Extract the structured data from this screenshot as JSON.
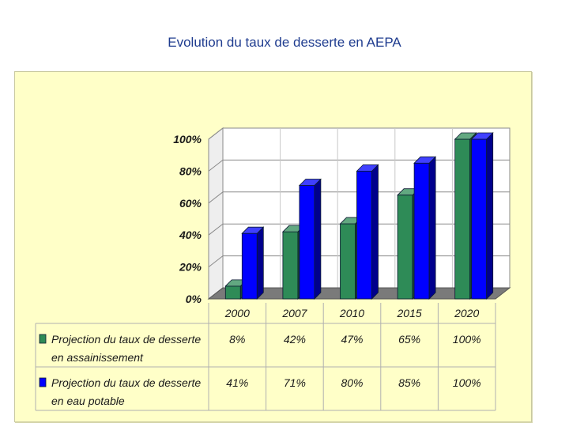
{
  "title": "Evolution du taux de desserte en AEPA",
  "chart_data": {
    "type": "bar",
    "style": "3d-clustered-with-data-table",
    "categories": [
      "2000",
      "2007",
      "2010",
      "2015",
      "2020"
    ],
    "ylim": [
      0,
      100
    ],
    "yticks": [
      "0%",
      "20%",
      "40%",
      "60%",
      "80%",
      "100%"
    ],
    "grid": true,
    "series": [
      {
        "name_lines": [
          "Projection du taux de desserte",
          "en assainissement"
        ],
        "values": [
          8,
          42,
          47,
          65,
          100
        ],
        "labels": [
          "8%",
          "42%",
          "47%",
          "65%",
          "100%"
        ],
        "color": "#2e8b57"
      },
      {
        "name_lines": [
          "Projection du taux de desserte",
          "en eau potable"
        ],
        "values": [
          41,
          71,
          80,
          85,
          100
        ],
        "labels": [
          "41%",
          "71%",
          "80%",
          "85%",
          "100%"
        ],
        "color": "#0000ff"
      }
    ]
  }
}
